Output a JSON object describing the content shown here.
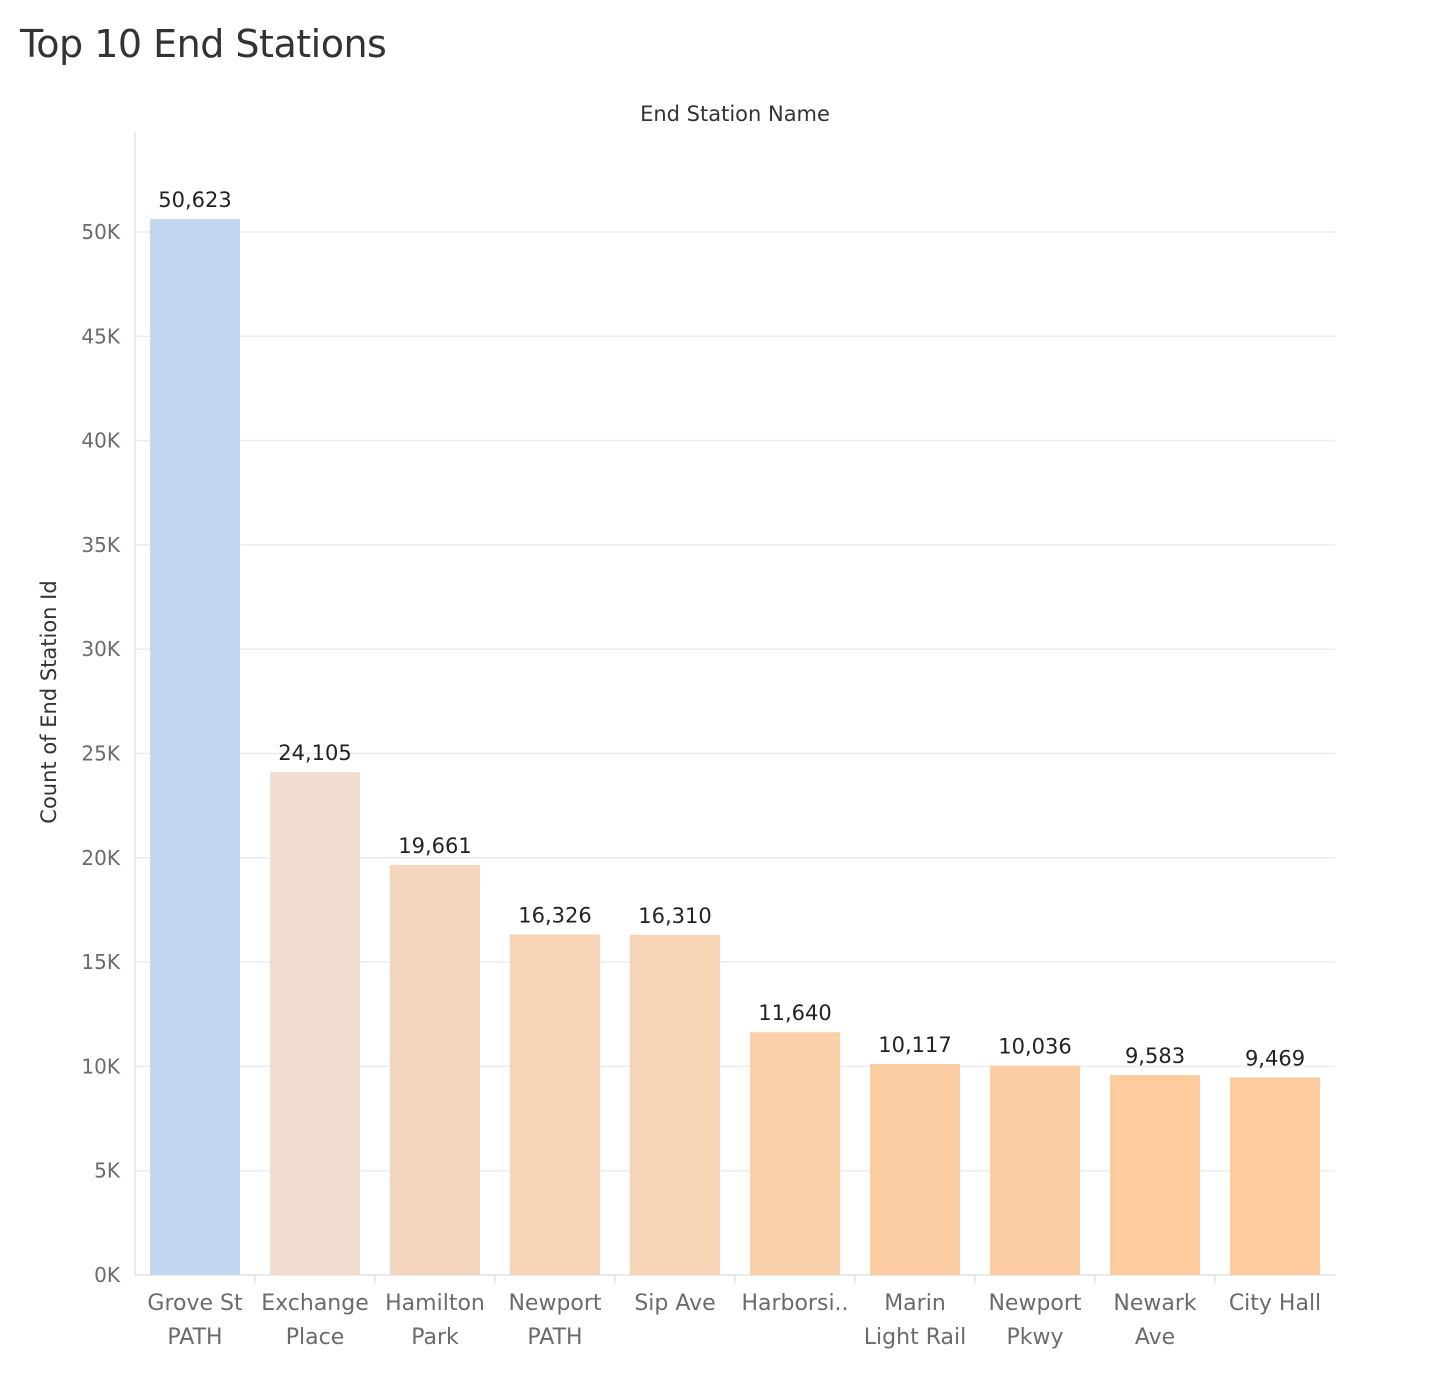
{
  "title": "Top 10 End Stations",
  "chart_data": {
    "type": "bar",
    "title": "Top 10 End Stations",
    "xlabel": "End Station Name",
    "ylabel": "Count of End Station Id",
    "categories": [
      [
        "Grove St",
        "PATH"
      ],
      [
        "Exchange",
        "Place"
      ],
      [
        "Hamilton",
        "Park"
      ],
      [
        "Newport",
        "PATH"
      ],
      [
        "Sip Ave"
      ],
      [
        "Harborsi.."
      ],
      [
        "Marin",
        "Light Rail"
      ],
      [
        "Newport",
        "Pkwy"
      ],
      [
        "Newark",
        "Ave"
      ],
      [
        "City Hall"
      ]
    ],
    "values": [
      50623,
      24105,
      19661,
      16326,
      16310,
      11640,
      10117,
      10036,
      9583,
      9469
    ],
    "value_labels": [
      "50,623",
      "24,105",
      "19,661",
      "16,326",
      "16,310",
      "11,640",
      "10,117",
      "10,036",
      "9,583",
      "9,469"
    ],
    "colors": [
      "#c4d7f2",
      "#f0ddd0",
      "#f4d5bd",
      "#f7d4b6",
      "#f7d4b6",
      "#fad0aa",
      "#fccda3",
      "#fccda3",
      "#fdcb9e",
      "#fdcb9e"
    ],
    "yticks": [
      0,
      5000,
      10000,
      15000,
      20000,
      25000,
      30000,
      35000,
      40000,
      45000,
      50000
    ],
    "ytick_labels": [
      "0K",
      "5K",
      "10K",
      "15K",
      "20K",
      "25K",
      "30K",
      "35K",
      "40K",
      "45K",
      "50K"
    ],
    "ylim": [
      0,
      50623
    ],
    "grid": true,
    "legend": "none"
  }
}
